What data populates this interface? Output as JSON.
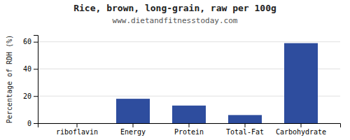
{
  "chart_data": {
    "type": "bar",
    "title": "Rice, brown, long-grain, raw per 100g",
    "subtitle": "www.dietandfitnesstoday.com",
    "categories": [
      "riboflavin",
      "Energy",
      "Protein",
      "Total-Fat",
      "Carbohydrate"
    ],
    "values": [
      0,
      18,
      13,
      6,
      59
    ],
    "color": "#2e4d9e",
    "ylabel": "Percentage of RDH (%)",
    "ylim": [
      0,
      65
    ],
    "yticks": [
      0,
      20,
      40,
      60
    ],
    "grid": true
  }
}
